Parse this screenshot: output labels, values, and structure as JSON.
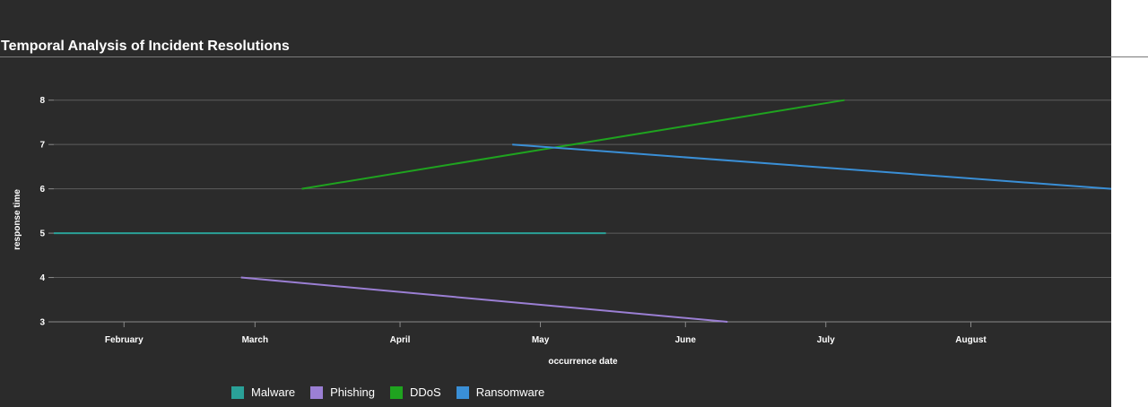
{
  "title": "Temporal Analysis of Incident Resolutions",
  "chart_data": {
    "type": "line",
    "title": "Temporal Analysis of Incident Resolutions",
    "xlabel": "occurrence date",
    "ylabel": "response time",
    "x_ticks": [
      "February",
      "March",
      "April",
      "May",
      "June",
      "July",
      "August"
    ],
    "x_range": [
      "2023-01-17",
      "2023-08-31"
    ],
    "y_ticks": [
      3,
      4,
      5,
      6,
      7,
      8
    ],
    "ylim": [
      3,
      8.5
    ],
    "grid": "horizontal",
    "legend_position": "bottom",
    "series": [
      {
        "name": "Malware",
        "color": "#2aa198",
        "points": [
          [
            "2023-01-17",
            5
          ],
          [
            "2023-05-15",
            5
          ]
        ]
      },
      {
        "name": "Phishing",
        "color": "#9b7fd4",
        "points": [
          [
            "2023-02-26",
            4
          ],
          [
            "2023-06-10",
            3
          ]
        ]
      },
      {
        "name": "DDoS",
        "color": "#1fa31f",
        "points": [
          [
            "2023-03-11",
            6
          ],
          [
            "2023-07-05",
            8
          ]
        ]
      },
      {
        "name": "Ransomware",
        "color": "#3a8fd6",
        "points": [
          [
            "2023-04-25",
            7
          ],
          [
            "2023-08-31",
            6
          ]
        ]
      }
    ]
  }
}
